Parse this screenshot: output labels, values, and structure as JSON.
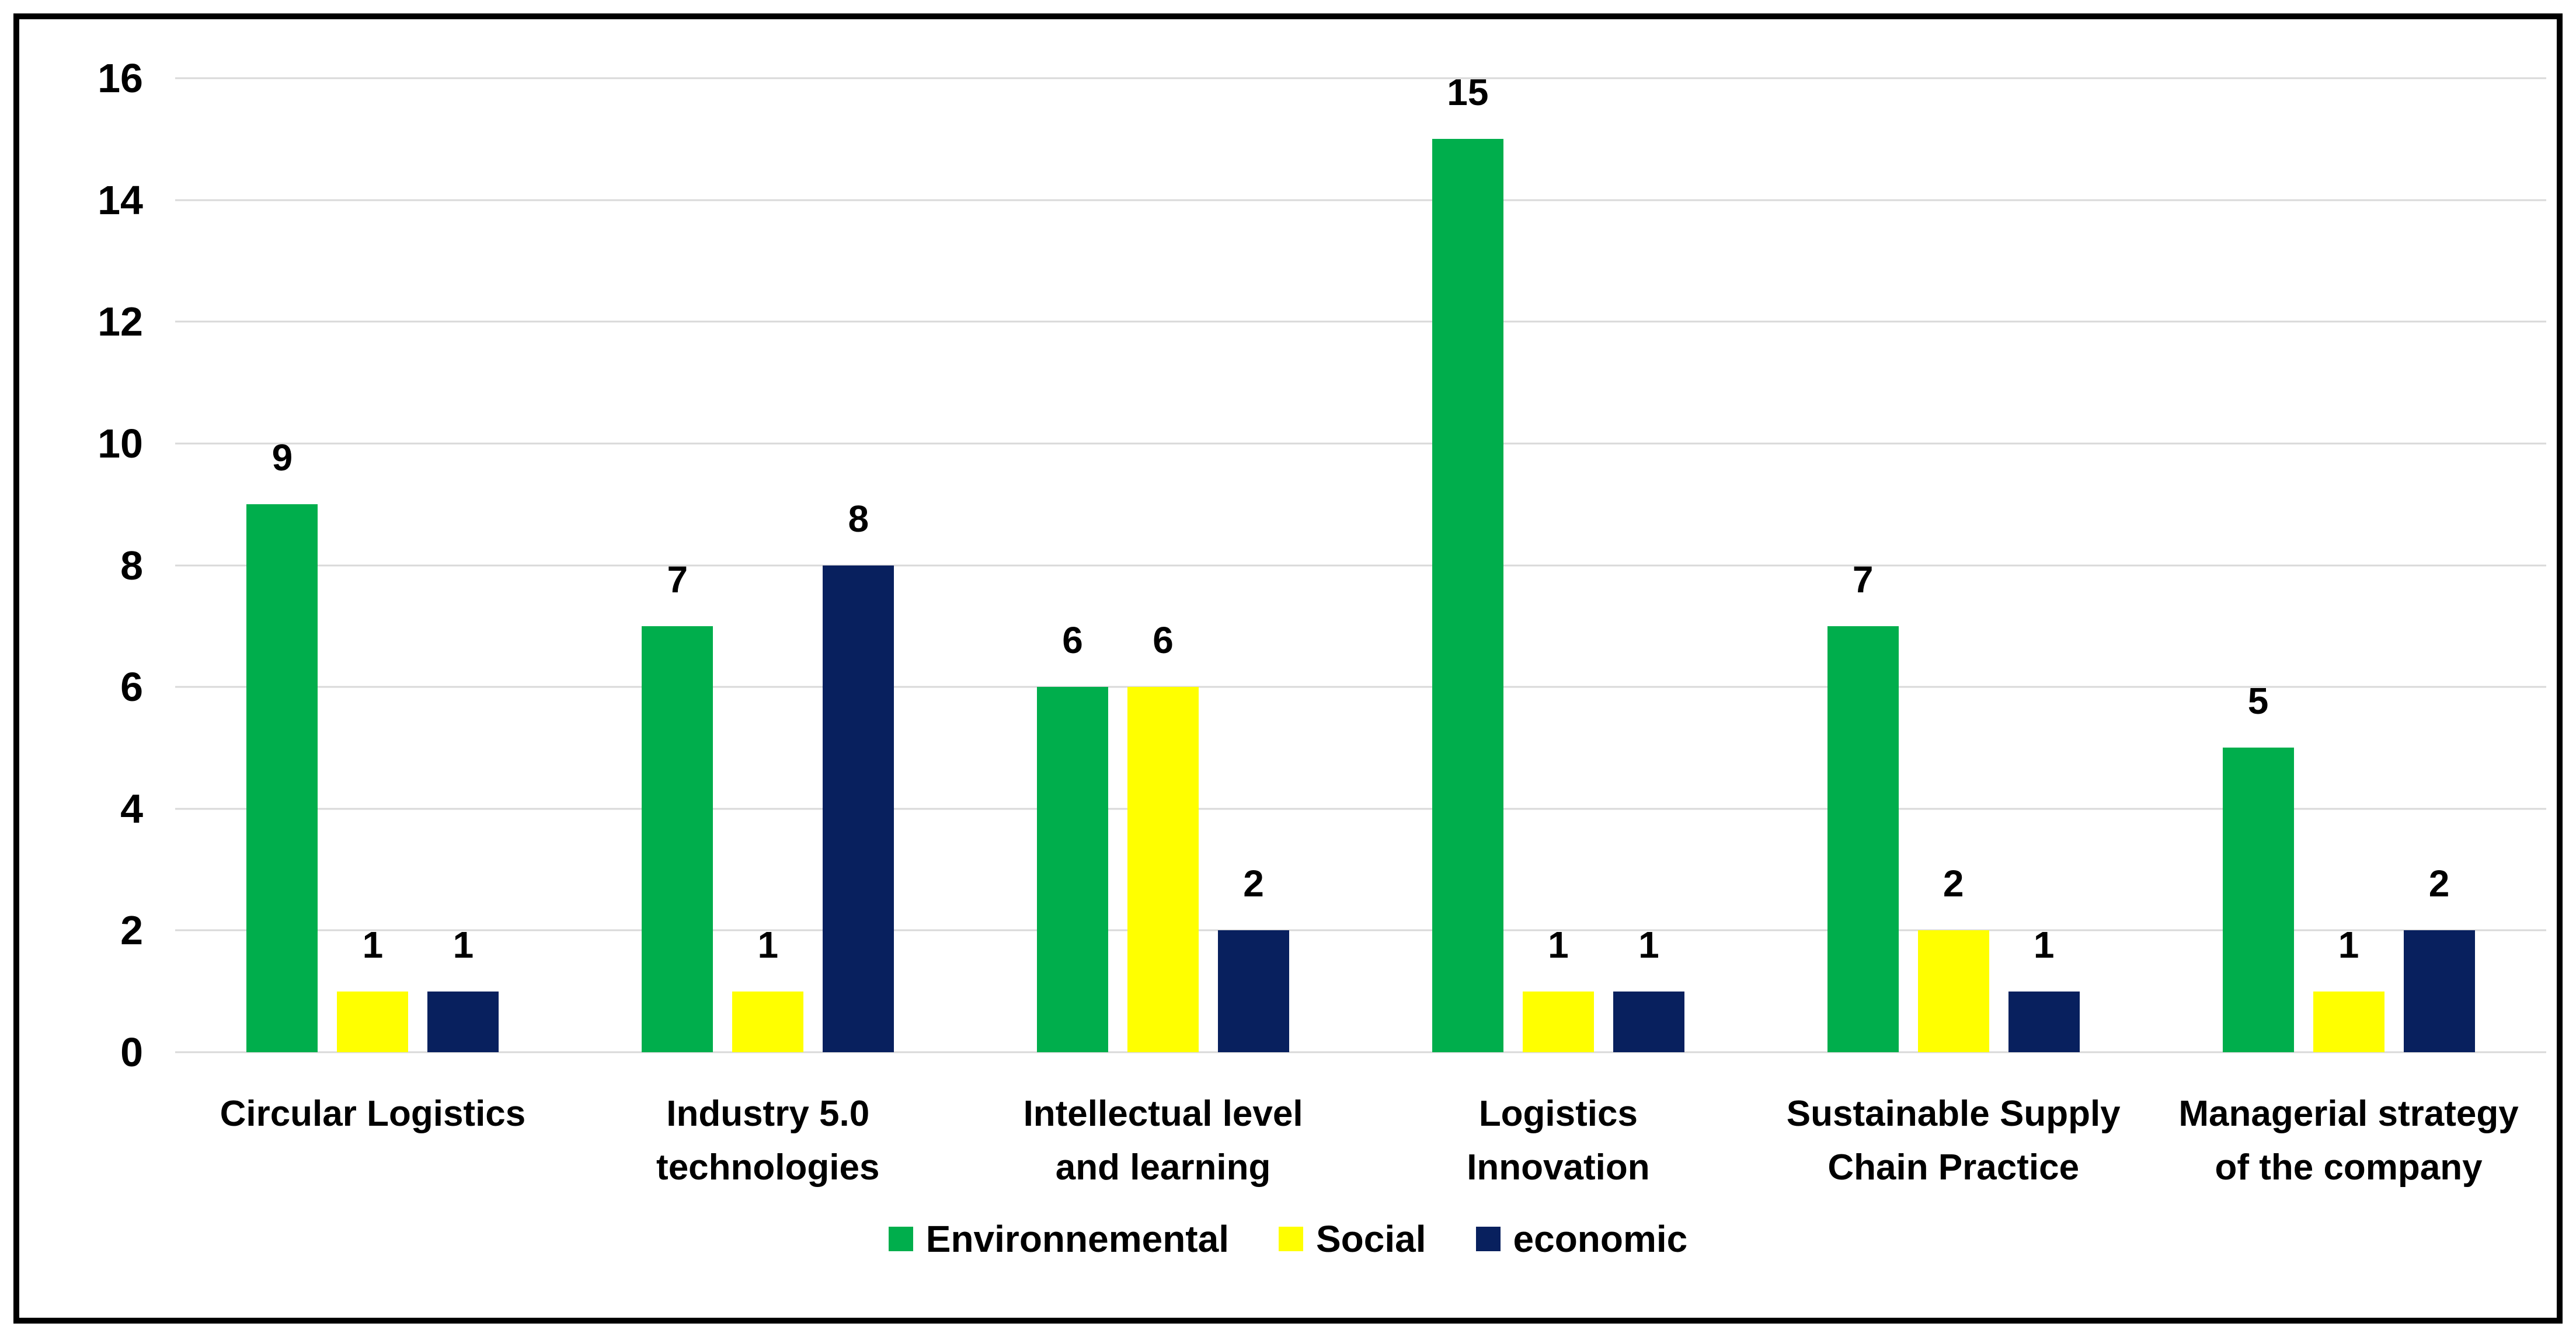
{
  "chart_data": {
    "type": "bar",
    "title": "",
    "categories": [
      "Circular Logistics",
      "Industry 5.0 technologies",
      "Intellectual level and learning",
      "Logistics Innovation",
      "Sustainable Supply Chain Practice",
      "Managerial strategy of the company"
    ],
    "series": [
      {
        "name": "Environnemental",
        "color": "#00AE4C",
        "values": [
          9,
          7,
          6,
          15,
          7,
          5
        ]
      },
      {
        "name": "Social",
        "color": "#FFFF00",
        "values": [
          1,
          1,
          6,
          1,
          2,
          1
        ]
      },
      {
        "name": "economic",
        "color": "#08205E",
        "values": [
          1,
          8,
          2,
          1,
          1,
          2
        ]
      }
    ],
    "ylim": [
      0,
      16
    ],
    "yticks": [
      0,
      2,
      4,
      6,
      8,
      10,
      12,
      14,
      16
    ],
    "xlabel": "",
    "ylabel": "",
    "grid": "horizontal",
    "legend_position": "bottom",
    "value_labels": true
  },
  "colors": {
    "gridline": "#D9D9D9",
    "frame_border": "#000000",
    "background": "#FFFFFF",
    "text": "#000000"
  }
}
